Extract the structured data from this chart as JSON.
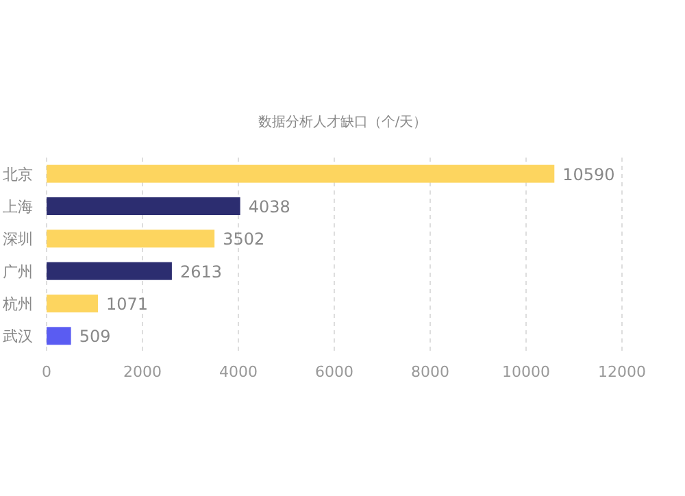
{
  "chart_data": {
    "type": "bar",
    "orientation": "horizontal",
    "title": "数据分析人才缺口（个/天）",
    "categories": [
      "北京",
      "上海",
      "深圳",
      "广州",
      "杭州",
      "武汉"
    ],
    "values": [
      10590,
      4038,
      3502,
      2613,
      1071,
      509
    ],
    "colors": [
      "#fdd55f",
      "#2c2d70",
      "#fdd55f",
      "#2c2d70",
      "#fdd55f",
      "#5a5cf2"
    ],
    "xlim": [
      0,
      12000
    ],
    "xticks": [
      0,
      2000,
      4000,
      6000,
      8000,
      10000,
      12000
    ],
    "grid": "x",
    "data_labels": true
  }
}
